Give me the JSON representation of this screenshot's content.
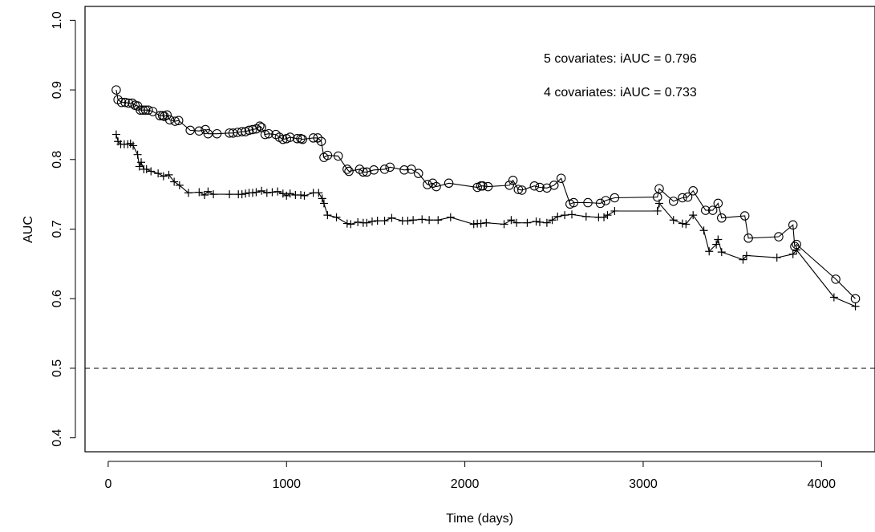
{
  "chart_data": {
    "type": "line",
    "xlabel": "Time (days)",
    "ylabel": "AUC",
    "xlim": [
      -130,
      4300
    ],
    "ylim": [
      0.38,
      1.02
    ],
    "x_ticks": [
      0,
      1000,
      2000,
      3000,
      4000
    ],
    "y_ticks": [
      0.4,
      0.5,
      0.6,
      0.7,
      0.8,
      0.9,
      1.0
    ],
    "x_tick_labels": [
      "0",
      "1000",
      "2000",
      "3000",
      "4000"
    ],
    "y_tick_labels": [
      "0.4",
      "0.5",
      "0.6",
      "0.7",
      "0.8",
      "0.9",
      "1.0"
    ],
    "reference_line": {
      "y": 0.5,
      "style": "dashed"
    },
    "annotations": [
      "5 covariates: iAUC = 0.796",
      "4 covariates: iAUC = 0.733"
    ],
    "series": [
      {
        "marker": "circle",
        "points": [
          [
            45,
            0.9
          ],
          [
            55,
            0.886
          ],
          [
            75,
            0.882
          ],
          [
            95,
            0.882
          ],
          [
            115,
            0.881
          ],
          [
            135,
            0.881
          ],
          [
            150,
            0.878
          ],
          [
            165,
            0.877
          ],
          [
            180,
            0.871
          ],
          [
            195,
            0.871
          ],
          [
            210,
            0.871
          ],
          [
            225,
            0.871
          ],
          [
            250,
            0.869
          ],
          [
            290,
            0.863
          ],
          [
            305,
            0.863
          ],
          [
            315,
            0.862
          ],
          [
            330,
            0.864
          ],
          [
            345,
            0.857
          ],
          [
            375,
            0.855
          ],
          [
            395,
            0.856
          ],
          [
            460,
            0.842
          ],
          [
            510,
            0.841
          ],
          [
            545,
            0.843
          ],
          [
            560,
            0.837
          ],
          [
            610,
            0.837
          ],
          [
            680,
            0.838
          ],
          [
            700,
            0.838
          ],
          [
            725,
            0.839
          ],
          [
            750,
            0.84
          ],
          [
            770,
            0.84
          ],
          [
            790,
            0.842
          ],
          [
            810,
            0.843
          ],
          [
            830,
            0.844
          ],
          [
            850,
            0.848
          ],
          [
            860,
            0.846
          ],
          [
            880,
            0.836
          ],
          [
            900,
            0.837
          ],
          [
            940,
            0.836
          ],
          [
            960,
            0.832
          ],
          [
            980,
            0.829
          ],
          [
            1000,
            0.83
          ],
          [
            1020,
            0.832
          ],
          [
            1060,
            0.83
          ],
          [
            1080,
            0.83
          ],
          [
            1090,
            0.829
          ],
          [
            1150,
            0.831
          ],
          [
            1175,
            0.831
          ],
          [
            1195,
            0.826
          ],
          [
            1210,
            0.803
          ],
          [
            1230,
            0.806
          ],
          [
            1290,
            0.805
          ],
          [
            1340,
            0.786
          ],
          [
            1350,
            0.783
          ],
          [
            1410,
            0.786
          ],
          [
            1430,
            0.782
          ],
          [
            1450,
            0.782
          ],
          [
            1490,
            0.785
          ],
          [
            1550,
            0.786
          ],
          [
            1580,
            0.789
          ],
          [
            1660,
            0.785
          ],
          [
            1700,
            0.786
          ],
          [
            1740,
            0.78
          ],
          [
            1790,
            0.764
          ],
          [
            1820,
            0.766
          ],
          [
            1840,
            0.761
          ],
          [
            1910,
            0.766
          ],
          [
            2070,
            0.76
          ],
          [
            2090,
            0.762
          ],
          [
            2100,
            0.762
          ],
          [
            2130,
            0.761
          ],
          [
            2250,
            0.763
          ],
          [
            2270,
            0.77
          ],
          [
            2300,
            0.757
          ],
          [
            2320,
            0.756
          ],
          [
            2390,
            0.762
          ],
          [
            2420,
            0.76
          ],
          [
            2460,
            0.759
          ],
          [
            2500,
            0.763
          ],
          [
            2540,
            0.773
          ],
          [
            2590,
            0.736
          ],
          [
            2610,
            0.738
          ],
          [
            2690,
            0.738
          ],
          [
            2760,
            0.737
          ],
          [
            2790,
            0.741
          ],
          [
            2840,
            0.745
          ],
          [
            3080,
            0.746
          ],
          [
            3090,
            0.758
          ],
          [
            3170,
            0.74
          ],
          [
            3220,
            0.745
          ],
          [
            3250,
            0.746
          ],
          [
            3280,
            0.755
          ],
          [
            3350,
            0.727
          ],
          [
            3390,
            0.727
          ],
          [
            3420,
            0.737
          ],
          [
            3440,
            0.716
          ],
          [
            3570,
            0.719
          ],
          [
            3590,
            0.687
          ],
          [
            3760,
            0.689
          ],
          [
            3840,
            0.706
          ],
          [
            3850,
            0.675
          ],
          [
            3860,
            0.678
          ],
          [
            4080,
            0.628
          ],
          [
            4190,
            0.6
          ]
        ]
      },
      {
        "marker": "plus",
        "points": [
          [
            45,
            0.836
          ],
          [
            55,
            0.826
          ],
          [
            70,
            0.822
          ],
          [
            90,
            0.822
          ],
          [
            110,
            0.822
          ],
          [
            125,
            0.823
          ],
          [
            140,
            0.82
          ],
          [
            165,
            0.807
          ],
          [
            175,
            0.79
          ],
          [
            185,
            0.796
          ],
          [
            200,
            0.786
          ],
          [
            215,
            0.786
          ],
          [
            240,
            0.783
          ],
          [
            280,
            0.78
          ],
          [
            310,
            0.776
          ],
          [
            340,
            0.778
          ],
          [
            370,
            0.768
          ],
          [
            400,
            0.763
          ],
          [
            450,
            0.752
          ],
          [
            510,
            0.753
          ],
          [
            540,
            0.749
          ],
          [
            560,
            0.754
          ],
          [
            590,
            0.75
          ],
          [
            680,
            0.75
          ],
          [
            730,
            0.75
          ],
          [
            750,
            0.75
          ],
          [
            770,
            0.751
          ],
          [
            790,
            0.752
          ],
          [
            810,
            0.752
          ],
          [
            830,
            0.753
          ],
          [
            860,
            0.755
          ],
          [
            890,
            0.752
          ],
          [
            920,
            0.753
          ],
          [
            950,
            0.754
          ],
          [
            980,
            0.751
          ],
          [
            1000,
            0.748
          ],
          [
            1020,
            0.751
          ],
          [
            1050,
            0.749
          ],
          [
            1080,
            0.749
          ],
          [
            1100,
            0.748
          ],
          [
            1150,
            0.752
          ],
          [
            1180,
            0.752
          ],
          [
            1200,
            0.744
          ],
          [
            1210,
            0.737
          ],
          [
            1230,
            0.72
          ],
          [
            1280,
            0.717
          ],
          [
            1340,
            0.708
          ],
          [
            1360,
            0.707
          ],
          [
            1400,
            0.71
          ],
          [
            1430,
            0.709
          ],
          [
            1450,
            0.709
          ],
          [
            1480,
            0.711
          ],
          [
            1510,
            0.712
          ],
          [
            1550,
            0.712
          ],
          [
            1590,
            0.716
          ],
          [
            1650,
            0.712
          ],
          [
            1680,
            0.712
          ],
          [
            1710,
            0.713
          ],
          [
            1760,
            0.714
          ],
          [
            1800,
            0.713
          ],
          [
            1850,
            0.713
          ],
          [
            1920,
            0.717
          ],
          [
            2050,
            0.707
          ],
          [
            2070,
            0.708
          ],
          [
            2090,
            0.708
          ],
          [
            2120,
            0.709
          ],
          [
            2220,
            0.707
          ],
          [
            2260,
            0.713
          ],
          [
            2290,
            0.709
          ],
          [
            2350,
            0.709
          ],
          [
            2400,
            0.711
          ],
          [
            2420,
            0.71
          ],
          [
            2460,
            0.709
          ],
          [
            2490,
            0.713
          ],
          [
            2520,
            0.718
          ],
          [
            2560,
            0.72
          ],
          [
            2600,
            0.721
          ],
          [
            2680,
            0.718
          ],
          [
            2750,
            0.717
          ],
          [
            2780,
            0.717
          ],
          [
            2800,
            0.72
          ],
          [
            2840,
            0.726
          ],
          [
            3080,
            0.726
          ],
          [
            3090,
            0.737
          ],
          [
            3170,
            0.713
          ],
          [
            3220,
            0.708
          ],
          [
            3240,
            0.707
          ],
          [
            3280,
            0.72
          ],
          [
            3340,
            0.698
          ],
          [
            3370,
            0.668
          ],
          [
            3410,
            0.678
          ],
          [
            3420,
            0.685
          ],
          [
            3440,
            0.667
          ],
          [
            3560,
            0.656
          ],
          [
            3580,
            0.662
          ],
          [
            3750,
            0.659
          ],
          [
            3840,
            0.664
          ],
          [
            3860,
            0.67
          ],
          [
            4070,
            0.602
          ],
          [
            4190,
            0.589
          ]
        ]
      }
    ]
  }
}
